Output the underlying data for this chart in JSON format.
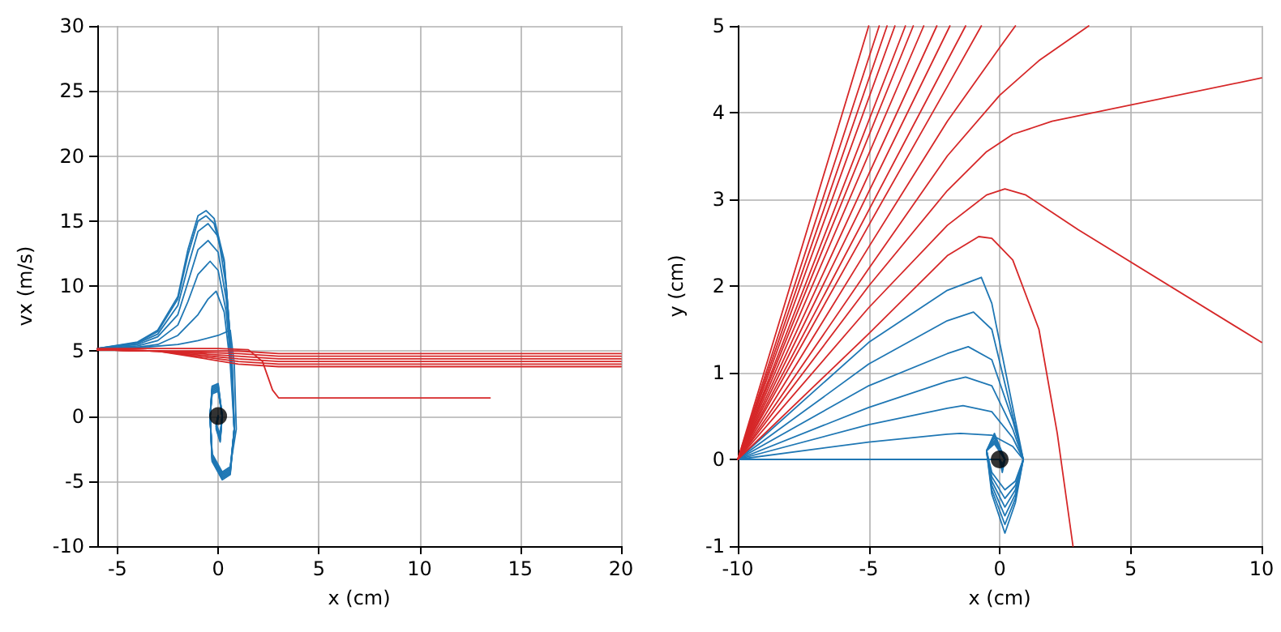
{
  "chart_data": [
    {
      "type": "line",
      "xlabel": "x (cm)",
      "ylabel": "vx (m/s)",
      "xlim": [
        -6,
        20
      ],
      "ylim": [
        -10,
        30
      ],
      "xticks": [
        -5,
        0,
        5,
        10,
        15,
        20
      ],
      "yticks": [
        -10,
        -5,
        0,
        5,
        10,
        15,
        20,
        25,
        30
      ],
      "grid": true,
      "marker": "none",
      "series": [
        {
          "color": "#1f77b4",
          "x": [
            -6,
            -4,
            -3,
            -2,
            -1.5,
            -1,
            -0.6,
            -0.2,
            0.3,
            0.6,
            0.8,
            0.6,
            0.2,
            -0.3,
            -0.4,
            -0.3,
            0,
            0.2,
            0.1,
            -0.1,
            0
          ],
          "values": [
            5.2,
            5.7,
            6.6,
            9.2,
            12.8,
            15.4,
            15.8,
            15.2,
            12,
            6,
            -1,
            -4.5,
            -4.9,
            -3.5,
            0,
            2.3,
            2.5,
            0,
            -2,
            -1,
            0
          ]
        },
        {
          "color": "#1f77b4",
          "x": [
            -6,
            -4,
            -3,
            -2,
            -1.5,
            -1,
            -0.6,
            -0.2,
            0.3,
            0.6,
            0.8,
            0.6,
            0.2,
            -0.3,
            -0.4,
            -0.3,
            0,
            0.2,
            0.1,
            -0.1,
            0
          ],
          "values": [
            5.2,
            5.65,
            6.5,
            9,
            12.4,
            15,
            15.4,
            14.8,
            11.8,
            6,
            -1,
            -4.4,
            -4.8,
            -3.4,
            0,
            2.2,
            2.4,
            0,
            -1.9,
            -0.9,
            0
          ]
        },
        {
          "color": "#1f77b4",
          "x": [
            -6,
            -4,
            -3,
            -2,
            -1.5,
            -1,
            -0.5,
            0,
            0.4,
            0.7,
            0.8,
            0.6,
            0.2,
            -0.3,
            -0.4,
            -0.3,
            0,
            0.2,
            0.1,
            -0.1,
            0
          ],
          "values": [
            5.2,
            5.6,
            6.3,
            8.5,
            11.5,
            14.2,
            14.8,
            13.8,
            10,
            4,
            -1,
            -4.3,
            -4.7,
            -3.3,
            0,
            2.1,
            2.3,
            0,
            -1.8,
            -0.8,
            0
          ]
        },
        {
          "color": "#1f77b4",
          "x": [
            -6,
            -4,
            -3,
            -2,
            -1.5,
            -1,
            -0.5,
            0,
            0.4,
            0.7,
            0.8,
            0.6,
            0.2,
            -0.3,
            -0.4,
            -0.3,
            0,
            0.2,
            0.1,
            -0.1,
            0
          ],
          "values": [
            5.2,
            5.5,
            6.1,
            7.8,
            10.3,
            12.8,
            13.5,
            12.6,
            9,
            3.5,
            -1,
            -4.2,
            -4.6,
            -3.2,
            0,
            2,
            2.2,
            0,
            -1.7,
            -0.8,
            0
          ]
        },
        {
          "color": "#1f77b4",
          "x": [
            -6,
            -4,
            -3,
            -2,
            -1.5,
            -1,
            -0.4,
            0,
            0.4,
            0.7,
            0.8,
            0.6,
            0.2,
            -0.3,
            -0.4,
            -0.3,
            0,
            0.2,
            0.1,
            -0.1,
            0
          ],
          "values": [
            5.2,
            5.4,
            5.8,
            7,
            8.8,
            10.9,
            11.9,
            11.2,
            8,
            3,
            -1,
            -4.1,
            -4.5,
            -3.1,
            0,
            1.9,
            2.1,
            0,
            -1.6,
            -0.7,
            0
          ]
        },
        {
          "color": "#1f77b4",
          "x": [
            -6,
            -4,
            -3,
            -2,
            -1,
            -0.5,
            -0.1,
            0.3,
            0.6,
            0.8,
            0.6,
            0.2,
            -0.3,
            -0.4,
            -0.3,
            0,
            0.2,
            0.1,
            -0.1,
            0
          ],
          "values": [
            5.2,
            5.3,
            5.5,
            6.2,
            7.8,
            9,
            9.6,
            8,
            4,
            -1,
            -4,
            -4.4,
            -3,
            0,
            1.8,
            2,
            0,
            -1.5,
            -0.7,
            0
          ]
        },
        {
          "color": "#1f77b4",
          "x": [
            -6,
            -4,
            -2,
            -1,
            0,
            0.6,
            0.8,
            0.9,
            0.6,
            0.2,
            -0.3,
            -0.4,
            -0.3,
            0,
            0.2,
            0.1,
            -0.1,
            0
          ],
          "values": [
            5.2,
            5.25,
            5.5,
            5.8,
            6.2,
            6.6,
            4,
            -1,
            -3.9,
            -4.3,
            -2.9,
            0,
            1.7,
            1.9,
            0,
            -1.4,
            -0.6,
            0
          ]
        },
        {
          "color": "#d62728",
          "x": [
            -6,
            -3,
            1,
            3,
            20
          ],
          "values": [
            5.1,
            5,
            5,
            4.8,
            4.8
          ]
        },
        {
          "color": "#d62728",
          "x": [
            -6,
            -3,
            1,
            3,
            20
          ],
          "values": [
            5.1,
            5,
            4.8,
            4.6,
            4.6
          ]
        },
        {
          "color": "#d62728",
          "x": [
            -6,
            -3,
            1,
            3,
            20
          ],
          "values": [
            5.1,
            5,
            4.6,
            4.4,
            4.4
          ]
        },
        {
          "color": "#d62728",
          "x": [
            -6,
            -3,
            1,
            3,
            20
          ],
          "values": [
            5.1,
            5,
            4.4,
            4.2,
            4.2
          ]
        },
        {
          "color": "#d62728",
          "x": [
            -6,
            -3,
            1,
            3,
            20
          ],
          "values": [
            5.1,
            5,
            4.2,
            4,
            4
          ]
        },
        {
          "color": "#d62728",
          "x": [
            -6,
            -3,
            1,
            3,
            20
          ],
          "values": [
            5.1,
            5,
            4,
            3.8,
            3.8
          ]
        },
        {
          "color": "#d62728",
          "x": [
            -6,
            0,
            1.5,
            2.2,
            2.7,
            3,
            13.5
          ],
          "values": [
            5.2,
            5.2,
            5.1,
            4.2,
            2,
            1.4,
            1.4
          ]
        },
        {
          "type": "scatter",
          "marker": "circle",
          "color": "#000000",
          "x": [
            0
          ],
          "values": [
            0
          ]
        }
      ]
    },
    {
      "type": "line",
      "xlabel": "x (cm)",
      "ylabel": "y (cm)",
      "xlim": [
        -10,
        10
      ],
      "ylim": [
        -1,
        5
      ],
      "xticks": [
        -10,
        -5,
        0,
        5,
        10
      ],
      "yticks": [
        -1,
        0,
        1,
        2,
        3,
        4,
        5
      ],
      "grid": true,
      "marker": "none",
      "series": [
        {
          "color": "#1f77b4",
          "x": [
            -10,
            -5,
            -2,
            -0.7,
            -0.3,
            0.5,
            0.9,
            0.6,
            0.2,
            -0.3,
            -0.5,
            -0.2,
            0.2,
            0.1,
            0
          ],
          "values": [
            0,
            1.35,
            1.95,
            2.1,
            1.8,
            0.6,
            0,
            -0.5,
            -0.85,
            -0.4,
            0.1,
            0.3,
            0,
            -0.15,
            0
          ]
        },
        {
          "color": "#1f77b4",
          "x": [
            -10,
            -5,
            -2,
            -1,
            -0.3,
            0.5,
            0.9,
            0.6,
            0.2,
            -0.3,
            -0.5,
            -0.2,
            0.2,
            0.1,
            0
          ],
          "values": [
            0,
            1.1,
            1.6,
            1.7,
            1.5,
            0.5,
            0,
            -0.45,
            -0.75,
            -0.35,
            0.1,
            0.28,
            0,
            -0.12,
            0
          ]
        },
        {
          "color": "#1f77b4",
          "x": [
            -10,
            -5,
            -2,
            -1.2,
            -0.3,
            0.5,
            0.9,
            0.6,
            0.2,
            -0.3,
            -0.5,
            -0.2,
            0.2,
            0.1,
            0
          ],
          "values": [
            0,
            0.85,
            1.22,
            1.3,
            1.15,
            0.45,
            0,
            -0.4,
            -0.65,
            -0.3,
            0.1,
            0.25,
            0,
            -0.1,
            0
          ]
        },
        {
          "color": "#1f77b4",
          "x": [
            -10,
            -5,
            -2,
            -1.3,
            -0.3,
            0.5,
            0.9,
            0.6,
            0.2,
            -0.3,
            -0.5,
            -0.2,
            0.2,
            0.1,
            0
          ],
          "values": [
            0,
            0.6,
            0.9,
            0.95,
            0.85,
            0.35,
            0,
            -0.35,
            -0.55,
            -0.25,
            0.1,
            0.22,
            0,
            -0.08,
            0
          ]
        },
        {
          "color": "#1f77b4",
          "x": [
            -10,
            -5,
            -2,
            -1.4,
            -0.3,
            0.5,
            0.9,
            0.6,
            0.2,
            -0.3,
            -0.5,
            -0.2,
            0.2,
            0.1,
            0
          ],
          "values": [
            0,
            0.4,
            0.59,
            0.62,
            0.55,
            0.25,
            0,
            -0.3,
            -0.45,
            -0.2,
            0.1,
            0.2,
            0,
            -0.06,
            0
          ]
        },
        {
          "color": "#1f77b4",
          "x": [
            -10,
            -5,
            -2,
            -1.5,
            -0.3,
            0.5,
            0.9,
            0.6,
            0.2,
            -0.3,
            -0.5,
            -0.2,
            0.2,
            0.1,
            0
          ],
          "values": [
            0,
            0.2,
            0.29,
            0.3,
            0.28,
            0.15,
            0,
            -0.25,
            -0.35,
            -0.15,
            0.1,
            0.18,
            0,
            -0.05,
            0
          ]
        },
        {
          "color": "#1f77b4",
          "x": [
            -10,
            0
          ],
          "values": [
            0,
            0
          ]
        },
        {
          "color": "#d62728",
          "x": [
            -10,
            -5
          ],
          "values": [
            0,
            5
          ]
        },
        {
          "color": "#d62728",
          "x": [
            -10,
            -4.6
          ],
          "values": [
            0,
            5
          ]
        },
        {
          "color": "#d62728",
          "x": [
            -10,
            -4.3
          ],
          "values": [
            0,
            5
          ]
        },
        {
          "color": "#d62728",
          "x": [
            -10,
            -4
          ],
          "values": [
            0,
            5
          ]
        },
        {
          "color": "#d62728",
          "x": [
            -10,
            -3.6
          ],
          "values": [
            0,
            5
          ]
        },
        {
          "color": "#d62728",
          "x": [
            -10,
            -3.3
          ],
          "values": [
            0,
            5
          ]
        },
        {
          "color": "#d62728",
          "x": [
            -10,
            -2.9
          ],
          "values": [
            0,
            5
          ]
        },
        {
          "color": "#d62728",
          "x": [
            -10,
            -2.4
          ],
          "values": [
            0,
            5
          ]
        },
        {
          "color": "#d62728",
          "x": [
            -10,
            -1.9
          ],
          "values": [
            0,
            5
          ]
        },
        {
          "color": "#d62728",
          "x": [
            -10,
            -1.3
          ],
          "values": [
            0,
            5
          ]
        },
        {
          "color": "#d62728",
          "x": [
            -10,
            -5,
            -2,
            -0.7
          ],
          "values": [
            0,
            2.7,
            4.3,
            5
          ]
        },
        {
          "color": "#d62728",
          "x": [
            -10,
            -5,
            -2,
            0,
            0.6
          ],
          "values": [
            0,
            2.45,
            3.9,
            4.75,
            5
          ]
        },
        {
          "color": "#d62728",
          "x": [
            -10,
            -5,
            -2,
            0,
            1.5,
            3.4
          ],
          "values": [
            0,
            2.2,
            3.5,
            4.2,
            4.6,
            5
          ]
        },
        {
          "color": "#d62728",
          "x": [
            -10,
            -5,
            -2,
            -0.5,
            0.5,
            2,
            10
          ],
          "values": [
            0,
            2,
            3.1,
            3.55,
            3.75,
            3.9,
            4.4
          ]
        },
        {
          "color": "#d62728",
          "x": [
            -10,
            -5,
            -2,
            -0.5,
            0.2,
            1,
            3,
            10
          ],
          "values": [
            0,
            1.75,
            2.7,
            3.05,
            3.12,
            3.05,
            2.65,
            1.35
          ]
        },
        {
          "color": "#d62728",
          "x": [
            -10,
            -5,
            -2,
            -0.8,
            -0.3,
            0.5,
            1.5,
            2.2,
            2.8
          ],
          "values": [
            0,
            1.45,
            2.35,
            2.57,
            2.55,
            2.3,
            1.5,
            0.3,
            -1
          ]
        },
        {
          "type": "scatter",
          "marker": "circle",
          "color": "#000000",
          "x": [
            0
          ],
          "values": [
            0
          ]
        }
      ]
    }
  ]
}
